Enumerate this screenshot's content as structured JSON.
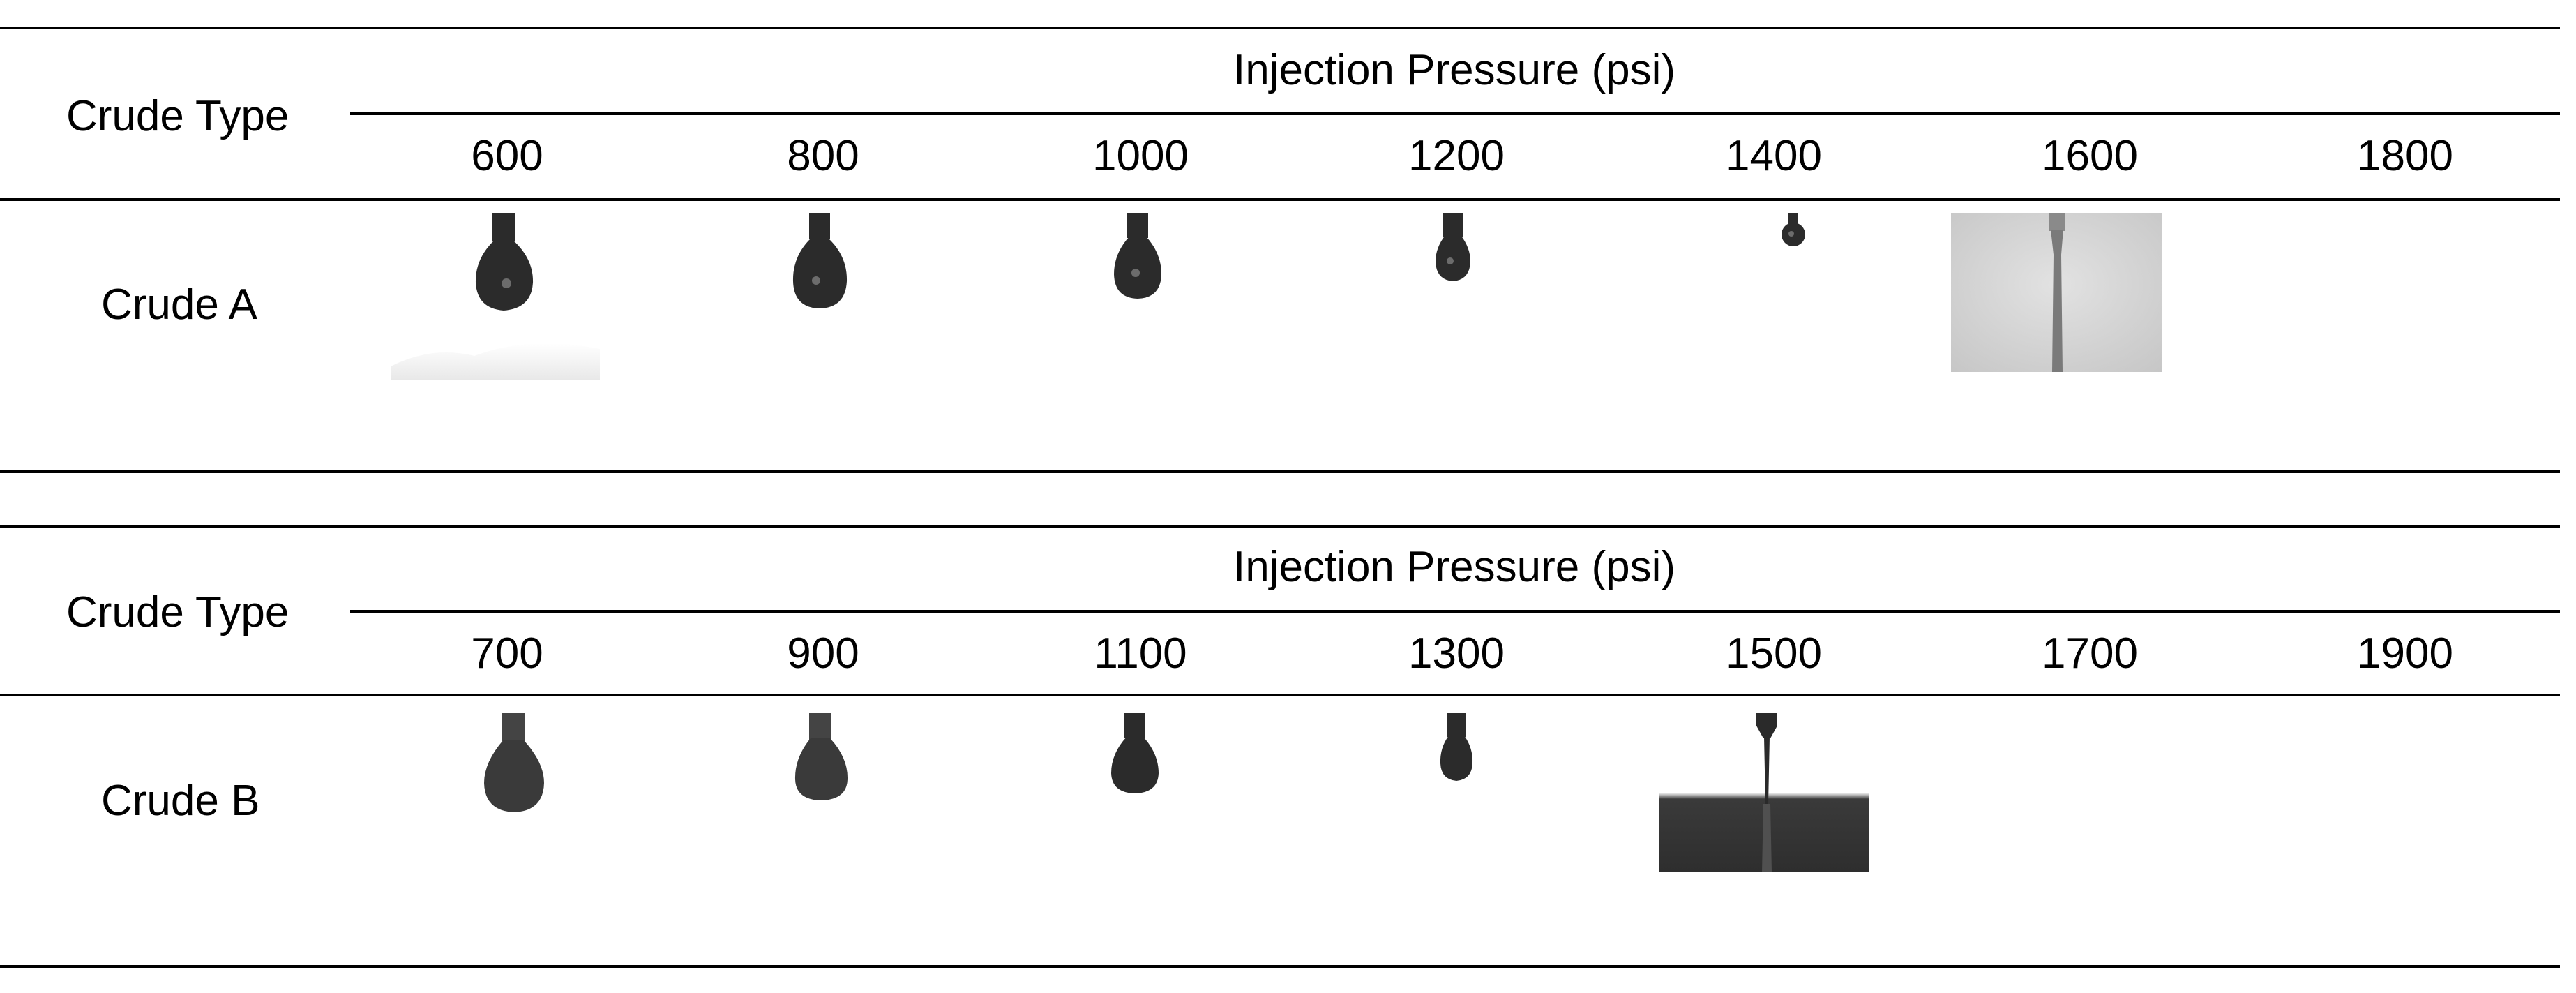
{
  "tables": [
    {
      "row_header": "Crude Type",
      "group_header": "Injection Pressure (psi)",
      "crude": "Crude A",
      "pressures": [
        "600",
        "800",
        "1000",
        "1200",
        "1400",
        "1600",
        "1800"
      ],
      "image_states": [
        "droplet",
        "droplet",
        "droplet",
        "droplet",
        "droplet",
        "jet",
        "none"
      ]
    },
    {
      "row_header": "Crude Type",
      "group_header": "Injection Pressure (psi)",
      "crude": "Crude B",
      "pressures": [
        "700",
        "900",
        "1100",
        "1300",
        "1500",
        "1700",
        "1900"
      ],
      "image_states": [
        "droplet",
        "droplet",
        "droplet",
        "droplet",
        "jet",
        "none",
        "none"
      ]
    }
  ],
  "colors": {
    "rule": "#000000",
    "droplet": "#2b2b2b",
    "jet_background": "#d4d4d4",
    "jet_stream": "#7a7a7a",
    "stream_dark": "#2a2a2a"
  }
}
